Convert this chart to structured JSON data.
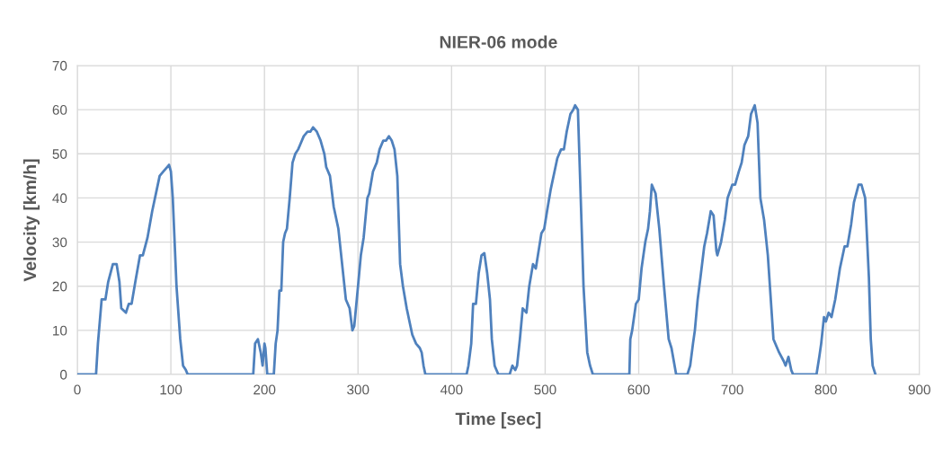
{
  "chart_data": {
    "type": "line",
    "title": "NIER-06 mode",
    "xlabel": "Time [sec]",
    "ylabel": "Velocity [km/h]",
    "xlim": [
      0,
      900
    ],
    "ylim": [
      0,
      70
    ],
    "xticks": [
      0,
      100,
      200,
      300,
      400,
      500,
      600,
      700,
      800,
      900
    ],
    "yticks": [
      0,
      10,
      20,
      30,
      40,
      50,
      60,
      70
    ],
    "grid": true,
    "marker": "none",
    "line_style": "solid",
    "series": [
      {
        "color": "#4f81bd",
        "x": [
          0,
          20,
          22,
          26,
          30,
          33,
          38,
          42,
          45,
          47,
          52,
          55,
          58,
          62,
          67,
          70,
          75,
          80,
          85,
          88,
          92,
          96,
          98,
          100,
          102,
          106,
          110,
          113,
          116,
          118,
          188,
          190,
          193,
          196,
          198,
          200,
          201,
          203,
          210,
          212,
          214,
          216,
          218,
          220,
          222,
          224,
          227,
          230,
          233,
          236,
          238,
          242,
          246,
          249,
          252,
          256,
          260,
          264,
          266,
          270,
          274,
          279,
          283,
          287,
          291,
          294,
          296,
          300,
          303,
          306,
          310,
          312,
          316,
          320,
          323,
          327,
          330,
          333,
          336,
          339,
          342,
          345,
          348,
          352,
          356,
          358,
          362,
          366,
          368,
          370,
          372,
          416,
          418,
          421,
          423,
          426,
          429,
          432,
          435,
          438,
          441,
          443,
          446,
          450,
          462,
          465,
          468,
          470,
          473,
          476,
          480,
          483,
          487,
          490,
          493,
          496,
          499,
          502,
          506,
          510,
          513,
          517,
          520,
          523,
          527,
          530,
          532,
          535,
          538,
          541,
          545,
          548,
          551,
          590,
          591,
          593,
          597,
          600,
          603,
          607,
          610,
          612,
          614,
          618,
          622,
          627,
          632,
          635,
          640,
          652,
          655,
          658,
          660,
          663,
          666,
          670,
          673,
          677,
          680,
          683,
          684,
          688,
          692,
          695,
          700,
          703,
          707,
          710,
          713,
          717,
          720,
          724,
          727,
          730,
          734,
          738,
          744,
          750,
          755,
          757,
          760,
          763,
          765,
          790,
          793,
          795,
          798,
          800,
          803,
          806,
          810,
          815,
          820,
          823,
          827,
          830,
          835,
          838,
          842,
          846,
          848,
          850,
          853
        ],
        "values": [
          0,
          0,
          7,
          17,
          17,
          21,
          25,
          25,
          21,
          15,
          14,
          16,
          16,
          21,
          27,
          27,
          31,
          37,
          42,
          45,
          46,
          47,
          47.5,
          46,
          40,
          20,
          8,
          2,
          1,
          0,
          0,
          7,
          8,
          5,
          2,
          7,
          6,
          0,
          0,
          7,
          10,
          19,
          19,
          30,
          32,
          33,
          40,
          48,
          50,
          51,
          52,
          54,
          55,
          55,
          56,
          55,
          53,
          50,
          47,
          45,
          38,
          33,
          25,
          17,
          15,
          10,
          11,
          20,
          27,
          31,
          40,
          41,
          46,
          48,
          51,
          53,
          53,
          54,
          53,
          51,
          45,
          25,
          20,
          15,
          11,
          9,
          7,
          6,
          5,
          2,
          0,
          0,
          2,
          7,
          16,
          16,
          23,
          27,
          27.5,
          23,
          17,
          8,
          2,
          0,
          0,
          2,
          1,
          2,
          8,
          15,
          14,
          20,
          25,
          24,
          28,
          32,
          33,
          37,
          42,
          46,
          49,
          51,
          51,
          55,
          59,
          60,
          61,
          60,
          40,
          20,
          5,
          2,
          0,
          0,
          8,
          10,
          16,
          17,
          24,
          30,
          33,
          37,
          43,
          41,
          33,
          20,
          8,
          6,
          0,
          0,
          2,
          7,
          10,
          17,
          22,
          29,
          32,
          37,
          36,
          28,
          27,
          30,
          35,
          40,
          43,
          43,
          46,
          48,
          52,
          54,
          59,
          61,
          57,
          40,
          35,
          27,
          8,
          5,
          3,
          2,
          4,
          1,
          0,
          0,
          4,
          7,
          13,
          12,
          14,
          13,
          17,
          24,
          29,
          29,
          34,
          39,
          43,
          43,
          40,
          22,
          8,
          2,
          0
        ]
      }
    ]
  }
}
